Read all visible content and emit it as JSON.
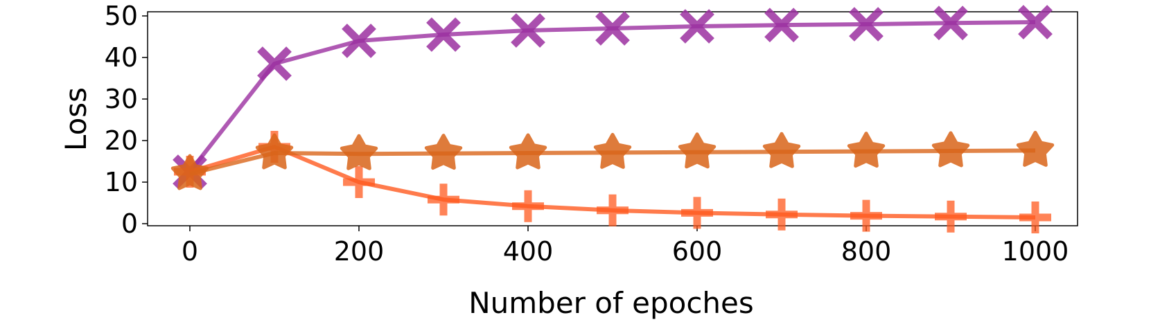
{
  "chart_data": {
    "type": "line",
    "xlabel": "Number of epoches",
    "ylabel": "Loss",
    "xlim": [
      -50,
      1050
    ],
    "ylim": [
      -0.5,
      51
    ],
    "xticks": [
      0,
      200,
      400,
      600,
      800,
      1000
    ],
    "yticks": [
      0,
      10,
      20,
      30,
      40,
      50
    ],
    "grid": false,
    "x": [
      0,
      100,
      200,
      300,
      400,
      500,
      600,
      700,
      800,
      900,
      1000
    ],
    "series": [
      {
        "color": "#9b30a0",
        "marker": "x",
        "values": [
          12.5,
          38.5,
          44.0,
          45.5,
          46.5,
          47.0,
          47.5,
          47.8,
          48.0,
          48.3,
          48.5
        ]
      },
      {
        "color": "#ff5a1f",
        "marker": "plus",
        "values": [
          12.5,
          18.5,
          10.0,
          5.8,
          4.2,
          3.2,
          2.6,
          2.2,
          1.9,
          1.7,
          1.5
        ]
      },
      {
        "color": "#d9651a",
        "marker": "star",
        "values": [
          12.0,
          17.0,
          16.8,
          16.9,
          17.0,
          17.1,
          17.2,
          17.3,
          17.4,
          17.5,
          17.6
        ]
      }
    ]
  }
}
